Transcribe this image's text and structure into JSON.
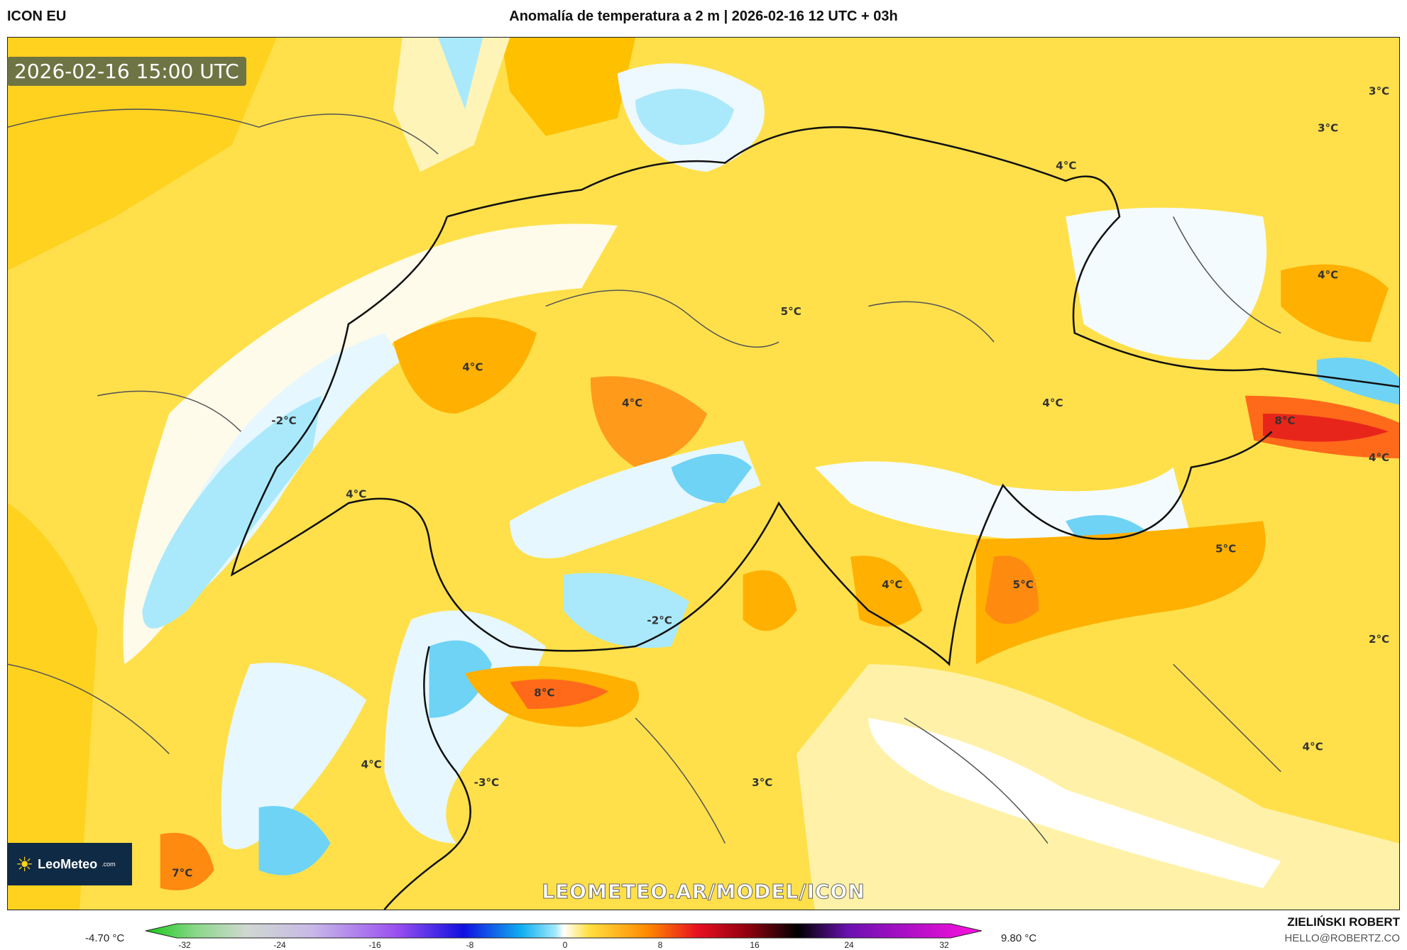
{
  "header": {
    "model": "ICON EU",
    "title": "Anomalía de temperatura a 2 m | 2026-02-16 12 UTC + 03h"
  },
  "map": {
    "timestamp": "2026-02-16 15:00 UTC",
    "watermark": "LEOMETEO.AR/MODEL/ICON",
    "logo": {
      "text": "LeoMeteo",
      "suffix": ".com"
    },
    "labels": [
      "3°C",
      "3°C",
      "4°C",
      "4°C",
      "5°C",
      "4°C",
      "4°C",
      "4°C",
      "-2°C",
      "8°C",
      "4°C",
      "4°C",
      "5°C",
      "5°C",
      "4°C",
      "-2°C",
      "2°C",
      "8°C",
      "4°C",
      "-3°C",
      "3°C",
      "4°C",
      "7°C"
    ]
  },
  "colorbar": {
    "min_label": "-4.70 °C",
    "max_label": "9.80 °C",
    "ticks": [
      "-32",
      "-24",
      "-16",
      "-8",
      "0",
      "8",
      "16",
      "24",
      "32"
    ],
    "tick_values": [
      -32,
      -24,
      -16,
      -8,
      0,
      8,
      16,
      24,
      32
    ],
    "range": [
      -32,
      32
    ]
  },
  "author": {
    "name": "ZIELIŃSKI ROBERT",
    "email": "HELLO@ROBERTZ.CO"
  }
}
